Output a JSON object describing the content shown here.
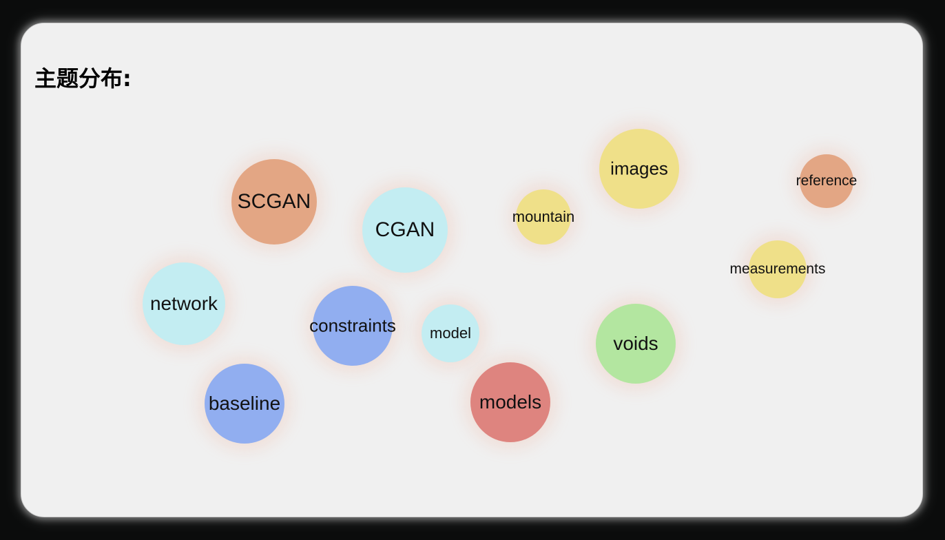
{
  "panel": {
    "title": "主题分布:"
  },
  "colors": {
    "orange": "#e3a684",
    "cyan": "#c3edf2",
    "blue": "#91aef0",
    "yellow": "#efe089",
    "red": "#de847f",
    "green": "#b3e6a0",
    "card_background": "#f0f0f0",
    "page_background": "#0b0c0c"
  },
  "topics": [
    {
      "label": "SCGAN",
      "color": "#e3a684"
    },
    {
      "label": "CGAN",
      "color": "#c3edf2"
    },
    {
      "label": "network",
      "color": "#c3edf2"
    },
    {
      "label": "constraints",
      "color": "#91aef0"
    },
    {
      "label": "model",
      "color": "#c3edf2"
    },
    {
      "label": "baseline",
      "color": "#91aef0"
    },
    {
      "label": "models",
      "color": "#de847f"
    },
    {
      "label": "mountain",
      "color": "#efe089"
    },
    {
      "label": "images",
      "color": "#efe089"
    },
    {
      "label": "voids",
      "color": "#b3e6a0"
    },
    {
      "label": "reference",
      "color": "#e3a684"
    },
    {
      "label": "measurements",
      "color": "#efe089"
    }
  ]
}
